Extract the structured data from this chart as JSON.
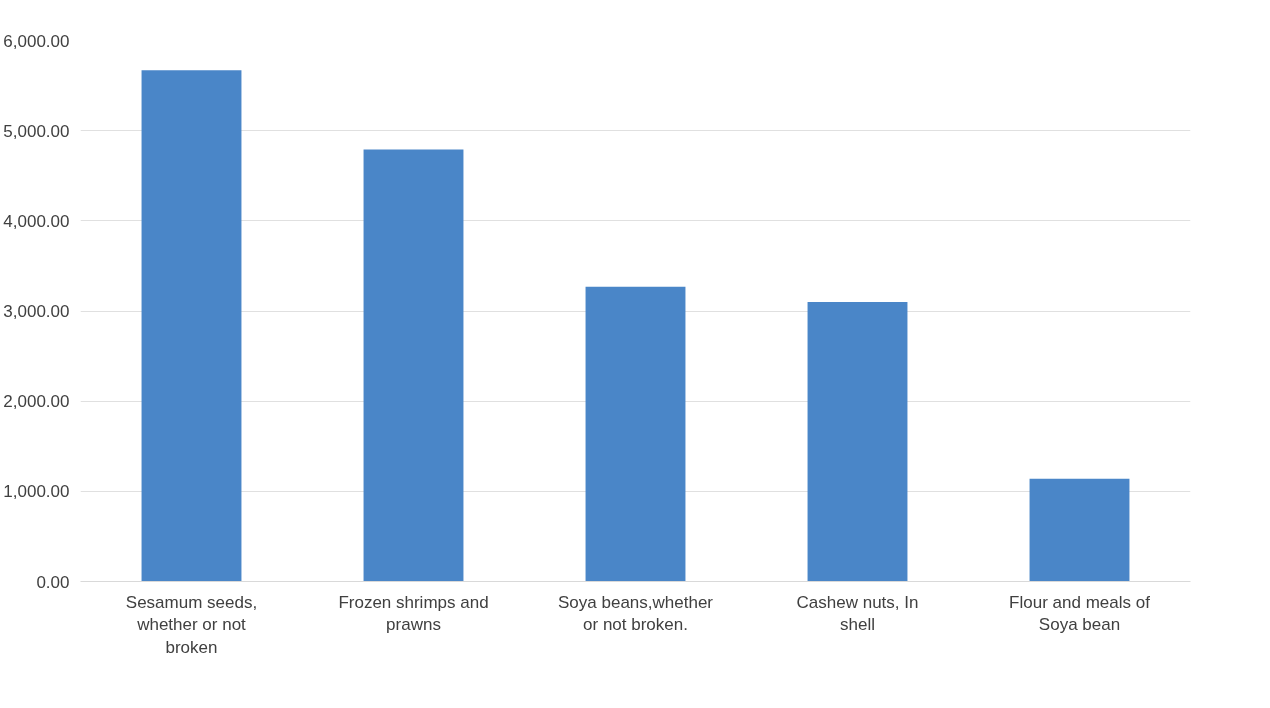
{
  "chart_data": {
    "type": "bar",
    "categories": [
      "Sesamum seeds, whether or not broken",
      "Frozen shrimps and prawns",
      "Soya beans,whether or not broken.",
      "Cashew nuts, In shell",
      "Flour and meals of Soya bean"
    ],
    "values": [
      5670,
      4790,
      3270,
      3100,
      1140
    ],
    "color": "#4a86c8",
    "ylim": [
      0,
      6000
    ],
    "yticks": [
      {
        "value": 0,
        "label": "0.00"
      },
      {
        "value": 1000,
        "label": "1,000.00"
      },
      {
        "value": 2000,
        "label": "2,000.00"
      },
      {
        "value": 3000,
        "label": "3,000.00"
      },
      {
        "value": 4000,
        "label": "4,000.00"
      },
      {
        "value": 5000,
        "label": "5,000.00"
      },
      {
        "value": 6000,
        "label": "6,000.00"
      }
    ],
    "grid": "y"
  }
}
